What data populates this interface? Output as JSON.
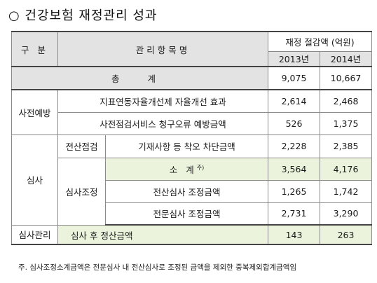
{
  "title": "○ 건강보험 재정관리 성과",
  "header": {
    "category": "구  분",
    "item": "관리항목명",
    "savings": "재정 절감액 (억원)",
    "year1": "2013년",
    "year2": "2014년"
  },
  "total": {
    "label": "총  계",
    "v2013": "9,075",
    "v2014": "10,667"
  },
  "prevention": {
    "label": "사전예방",
    "rows": [
      {
        "item": "지표연동자율개선제 자율개선 효과",
        "v2013": "2,614",
        "v2014": "2,468"
      },
      {
        "item": "사전점검서비스 청구오류 예방금액",
        "v2013": "526",
        "v2014": "1,375"
      }
    ]
  },
  "review": {
    "label": "심사",
    "electronic": {
      "sub": "전산점검",
      "item": "기재사항 등 착오 차단금액",
      "v2013": "2,228",
      "v2014": "2,385"
    },
    "adjustment": {
      "sub": "심사조정",
      "subtotal": {
        "item": "소  계",
        "note_mark": "주)",
        "v2013": "3,564",
        "v2014": "4,176"
      },
      "rows": [
        {
          "item": "전산심사 조정금액",
          "v2013": "1,265",
          "v2014": "1,742"
        },
        {
          "item": "전문심사 조정금액",
          "v2013": "2,731",
          "v2014": "3,290"
        }
      ]
    }
  },
  "management": {
    "label": "심사관리",
    "item": "심사 후 정산금액",
    "v2013": "143",
    "v2014": "263"
  },
  "footnote": "주. 심사조정소계금액은 전문심사 내 전산심사로 조정된 금액을 제외한 중복제외합계금액임"
}
